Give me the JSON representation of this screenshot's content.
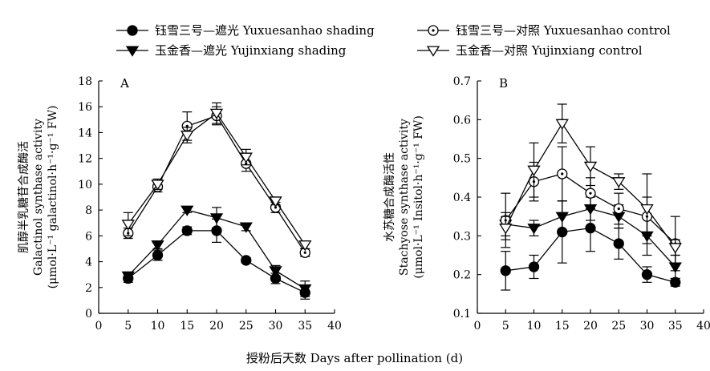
{
  "legend": [
    {
      "label": "钰雪三号—遮光 Yuxuesanhao shading",
      "marker": "circle",
      "filled": true
    },
    {
      "label": "钰雪三号—对照 Yuxuesanhao control",
      "marker": "circle-dot",
      "filled": false
    },
    {
      "label": "玉金香—遮光 Yujinxiang shading",
      "marker": "triangle-down",
      "filled": true
    },
    {
      "label": "玉金香—对照 Yujinxiang control",
      "marker": "triangle-down",
      "filled": false
    }
  ],
  "xlabel": "授粉后天数 Days after pollination (d)",
  "chart_data": [
    {
      "type": "line",
      "panel_letter": "A",
      "ylabel_lines": [
        "肌醇半乳糖苷合成酶活",
        "Galactinol synthase activity",
        "(μmol·L⁻¹ galactinol·h⁻¹·g⁻¹ FW)"
      ],
      "x": [
        5,
        10,
        15,
        20,
        25,
        30,
        35
      ],
      "xlim": [
        0,
        40
      ],
      "xticks": [
        0,
        5,
        10,
        15,
        20,
        25,
        30,
        35,
        40
      ],
      "ylim": [
        0,
        18
      ],
      "yticks": [
        0,
        2,
        4,
        6,
        8,
        10,
        12,
        14,
        16,
        18
      ],
      "grid": false,
      "series": [
        {
          "name": "钰雪三号—遮光 Yuxuesanhao shading",
          "marker": "circle",
          "filled": true,
          "values": [
            2.7,
            4.5,
            6.4,
            6.4,
            4.1,
            2.7,
            1.6
          ],
          "errors": [
            0.3,
            0.4,
            0.3,
            0.9,
            0.2,
            0.4,
            0.5
          ]
        },
        {
          "name": "玉金香—遮光 Yujinxiang shading",
          "marker": "triangle-down",
          "filled": true,
          "values": [
            2.9,
            5.3,
            8.0,
            7.4,
            6.7,
            3.3,
            1.9
          ],
          "errors": [
            0.3,
            0.3,
            0.2,
            0.8,
            0.3,
            0.4,
            0.6
          ]
        },
        {
          "name": "钰雪三号—对照 Yuxuesanhao control",
          "marker": "circle-dot",
          "filled": false,
          "values": [
            6.2,
            9.8,
            14.5,
            15.3,
            11.6,
            8.2,
            4.7
          ],
          "errors": [
            0.4,
            0.4,
            1.1,
            0.7,
            0.6,
            0.4,
            0.3
          ]
        },
        {
          "name": "玉金香—对照 Yujinxiang control",
          "marker": "triangle-down",
          "filled": false,
          "values": [
            6.9,
            10.0,
            13.8,
            15.5,
            12.1,
            8.7,
            5.3
          ],
          "errors": [
            0.9,
            0.4,
            0.6,
            0.8,
            0.6,
            0.3,
            0.3
          ]
        }
      ]
    },
    {
      "type": "line",
      "panel_letter": "B",
      "ylabel_lines": [
        "水苏糖合成酶活性",
        "Stachyose synthase activity",
        "(μmol·L⁻¹ Insitol·h⁻¹·g⁻¹ FW)"
      ],
      "x": [
        5,
        10,
        15,
        20,
        25,
        30,
        35
      ],
      "xlim": [
        0,
        40
      ],
      "xticks": [
        0,
        5,
        10,
        15,
        20,
        25,
        30,
        35,
        40
      ],
      "ylim": [
        0.1,
        0.7
      ],
      "yticks": [
        0.1,
        0.2,
        0.3,
        0.4,
        0.5,
        0.6,
        0.7
      ],
      "grid": false,
      "series": [
        {
          "name": "钰雪三号—遮光 Yuxuesanhao shading",
          "marker": "circle",
          "filled": true,
          "values": [
            0.21,
            0.22,
            0.31,
            0.32,
            0.28,
            0.2,
            0.18
          ],
          "errors": [
            0.05,
            0.03,
            0.08,
            0.06,
            0.04,
            0.02,
            0.01
          ]
        },
        {
          "name": "玉金香—遮光 Yujinxiang shading",
          "marker": "triangle-down",
          "filled": true,
          "values": [
            0.33,
            0.32,
            0.35,
            0.37,
            0.35,
            0.3,
            0.22
          ],
          "errors": [
            0.03,
            0.02,
            0.04,
            0.03,
            0.03,
            0.05,
            0.03
          ]
        },
        {
          "name": "钰雪三号—对照 Yuxuesanhao control",
          "marker": "circle-dot",
          "filled": false,
          "values": [
            0.34,
            0.44,
            0.46,
            0.41,
            0.37,
            0.35,
            0.28
          ],
          "errors": [
            0.07,
            0.05,
            0.07,
            0.04,
            0.04,
            0.05,
            0.07
          ]
        },
        {
          "name": "玉金香—对照 Yujinxiang control",
          "marker": "triangle-down",
          "filled": false,
          "values": [
            0.32,
            0.47,
            0.59,
            0.48,
            0.44,
            0.37,
            0.27
          ],
          "errors": [
            0.03,
            0.07,
            0.05,
            0.05,
            0.02,
            0.09,
            0.02
          ]
        }
      ]
    }
  ]
}
